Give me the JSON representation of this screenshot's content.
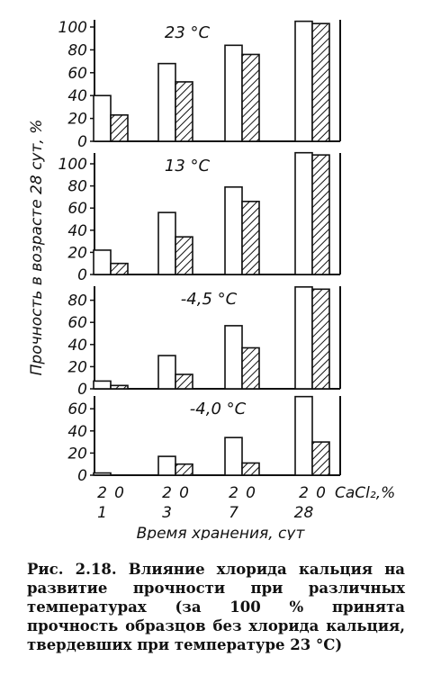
{
  "chart_data": [
    {
      "type": "bar",
      "title": "23 °C",
      "categories": [
        "1",
        "3",
        "7",
        "28"
      ],
      "series": [
        {
          "name": "2",
          "values": [
            40,
            68,
            84,
            105
          ]
        },
        {
          "name": "0",
          "values": [
            23,
            52,
            76,
            103
          ]
        }
      ],
      "yticks": [
        0,
        20,
        40,
        60,
        80,
        100
      ],
      "ylim": [
        0,
        105
      ]
    },
    {
      "type": "bar",
      "title": "13 °C",
      "categories": [
        "1",
        "3",
        "7",
        "28"
      ],
      "series": [
        {
          "name": "2",
          "values": [
            22,
            56,
            79,
            110
          ]
        },
        {
          "name": "0",
          "values": [
            10,
            34,
            66,
            108
          ]
        }
      ],
      "yticks": [
        0,
        20,
        40,
        60,
        80,
        100
      ],
      "ylim": [
        0,
        112
      ]
    },
    {
      "type": "bar",
      "title": "-4,5 °C",
      "categories": [
        "1",
        "3",
        "7",
        "28"
      ],
      "series": [
        {
          "name": "2",
          "values": [
            7,
            30,
            57,
            92
          ]
        },
        {
          "name": "0",
          "values": [
            3,
            13,
            37,
            90
          ]
        }
      ],
      "yticks": [
        0,
        20,
        40,
        60,
        80
      ],
      "ylim": [
        0,
        97
      ]
    },
    {
      "type": "bar",
      "title": "-4,0 °C",
      "categories": [
        "1",
        "3",
        "7",
        "28"
      ],
      "series": [
        {
          "name": "2",
          "values": [
            2,
            17,
            34,
            71
          ]
        },
        {
          "name": "0",
          "values": [
            0,
            10,
            11,
            30
          ]
        }
      ],
      "yticks": [
        0,
        20,
        40,
        60
      ],
      "ylim": [
        0,
        76
      ]
    }
  ],
  "axes": {
    "ylabel": "Прочность в возрасте 28 сут, %",
    "xlabel": "Время хранения, сут",
    "concentration_unit": "CaCl₂,%",
    "concentration_labels": [
      "2",
      "0"
    ]
  },
  "caption": "Рис. 2.18. Влияние хлорида кальция на развитие прочности при различных температурах (за 100 % принята прочность образцов без хлорида кальция, твердевших при температуре 23 °С)"
}
